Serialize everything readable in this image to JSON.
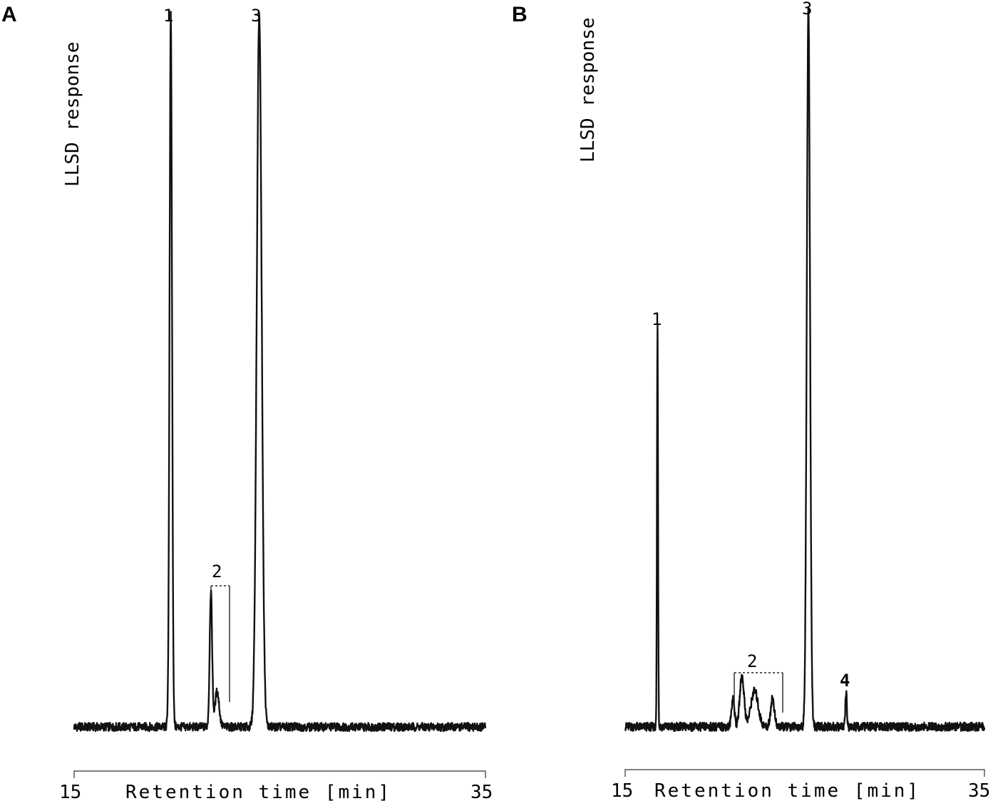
{
  "chart_data": [
    {
      "type": "line",
      "panel": "A",
      "ylabel": "LLSD response",
      "xlabel": "Retention time [min]",
      "xlim": [
        15,
        35
      ],
      "xticks": [
        "15",
        "35"
      ],
      "baseline": 0.02,
      "peak_labels": [
        {
          "text": "1",
          "x": 19.7
        },
        {
          "text": "2",
          "x": 22.0
        },
        {
          "text": "3",
          "x": 24.0
        }
      ],
      "series": [
        {
          "peaks": [
            {
              "x": 19.7,
              "height": 1.0,
              "width": 0.06
            },
            {
              "x": 21.65,
              "height": 0.19,
              "width": 0.06
            },
            {
              "x": 21.95,
              "height": 0.05,
              "width": 0.1
            },
            {
              "x": 24.0,
              "height": 1.0,
              "width": 0.12
            }
          ]
        }
      ]
    },
    {
      "type": "line",
      "panel": "B",
      "ylabel": "LLSD response",
      "xlabel": "Retention time [min]",
      "xlim": [
        15,
        35
      ],
      "xticks": [
        "15",
        "35"
      ],
      "baseline": 0.02,
      "peak_labels": [
        {
          "text": "1",
          "x": 16.8
        },
        {
          "text": "2",
          "x": 22.2
        },
        {
          "text": "3",
          "x": 25.2
        },
        {
          "text": "4",
          "x": 27.3
        }
      ],
      "series": [
        {
          "peaks": [
            {
              "x": 16.8,
              "height": 0.56,
              "width": 0.03
            },
            {
              "x": 21.0,
              "height": 0.04,
              "width": 0.08
            },
            {
              "x": 21.5,
              "height": 0.07,
              "width": 0.12
            },
            {
              "x": 22.2,
              "height": 0.05,
              "width": 0.2
            },
            {
              "x": 23.2,
              "height": 0.04,
              "width": 0.1
            },
            {
              "x": 25.2,
              "height": 1.0,
              "width": 0.09
            },
            {
              "x": 27.3,
              "height": 0.05,
              "width": 0.04
            }
          ]
        }
      ]
    }
  ]
}
